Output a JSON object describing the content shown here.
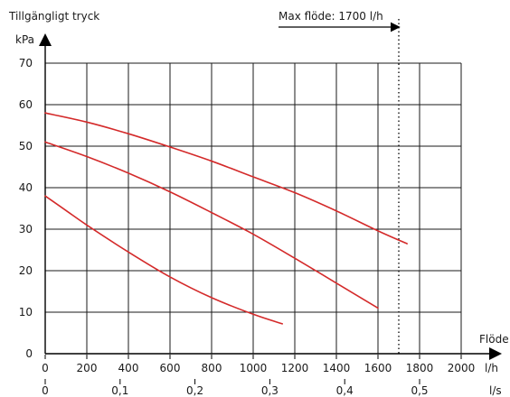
{
  "chart_data": {
    "type": "line",
    "title": "",
    "ylabel_title": "Tillgängligt tryck",
    "ylabel": "kPa",
    "xlabel": "Flöde",
    "x_unit_primary": "l/h",
    "x_unit_secondary": "l/s",
    "xlim": [
      0,
      2000
    ],
    "ylim": [
      0,
      70
    ],
    "grid": true,
    "x_ticks": [
      0,
      200,
      400,
      600,
      800,
      1000,
      1200,
      1400,
      1600,
      1800,
      2000
    ],
    "x_tick_labels": [
      "0",
      "200",
      "400",
      "600",
      "800",
      "1000",
      "1200",
      "1400",
      "1600",
      "1800",
      "2000"
    ],
    "y_ticks": [
      0,
      10,
      20,
      30,
      40,
      50,
      60,
      70
    ],
    "y_tick_labels": [
      "0",
      "10",
      "20",
      "30",
      "40",
      "50",
      "60",
      "70"
    ],
    "secondary_ticks": [
      {
        "x": 0,
        "label": "0"
      },
      {
        "x": 360,
        "label": "0,1"
      },
      {
        "x": 720,
        "label": "0,2"
      },
      {
        "x": 1080,
        "label": "0,3"
      },
      {
        "x": 1440,
        "label": "0,4"
      },
      {
        "x": 1800,
        "label": "0,5"
      }
    ],
    "limit": {
      "x": 1700,
      "label": "Max flöde: 1700 l/h"
    },
    "line_color": "#d42a2a",
    "series": [
      {
        "x": [
          0,
          200,
          400,
          600,
          800,
          1000,
          1200,
          1400,
          1600,
          1740
        ],
        "y": [
          58,
          55.8,
          53,
          49.8,
          46.4,
          42.6,
          38.8,
          34.4,
          29.6,
          26.5
        ]
      },
      {
        "x": [
          0,
          200,
          400,
          600,
          800,
          1000,
          1200,
          1400,
          1600
        ],
        "y": [
          51,
          47.5,
          43.5,
          39,
          34,
          28.8,
          23,
          17,
          11
        ]
      },
      {
        "x": [
          0,
          100,
          200,
          400,
          600,
          800,
          1000,
          1140
        ],
        "y": [
          38,
          34.5,
          31,
          24.5,
          18.5,
          13.5,
          9.5,
          7.2
        ]
      }
    ]
  }
}
